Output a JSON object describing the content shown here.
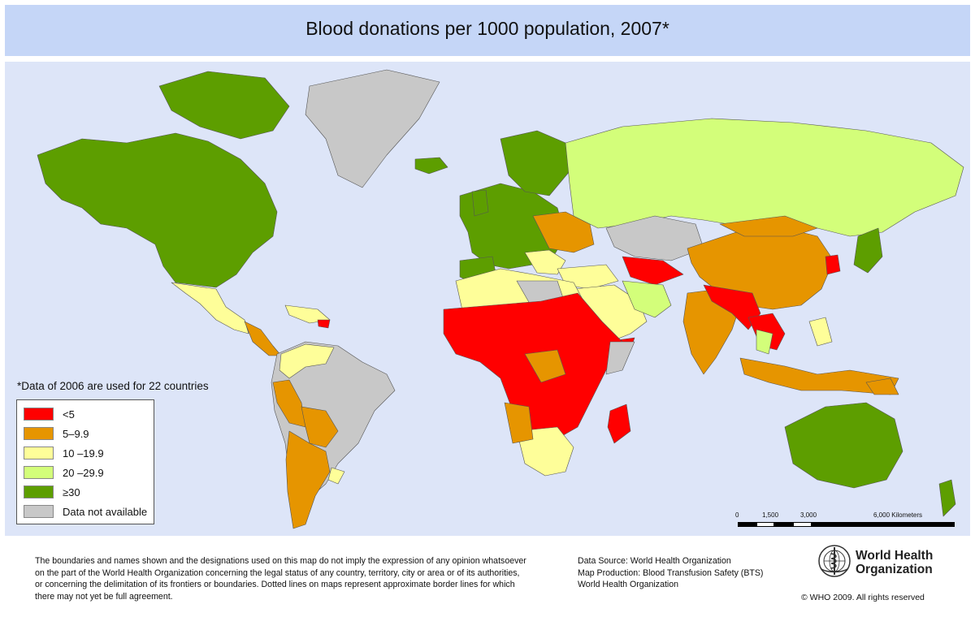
{
  "title": "Blood donations per 1000 population, 2007*",
  "note": "*Data of 2006 are used for 22 countries",
  "legend": {
    "items": [
      {
        "label": "<5",
        "color": "#ff0000"
      },
      {
        "label": "5–9.9",
        "color": "#e69500"
      },
      {
        "label": "10 –19.9",
        "color": "#fefe99"
      },
      {
        "label": "20 –29.9",
        "color": "#d3fe7a"
      },
      {
        "label": "≥30",
        "color": "#5d9e00"
      },
      {
        "label": "Data not available",
        "color": "#c8c8c8"
      }
    ]
  },
  "scale": {
    "labels": [
      "0",
      "1,500",
      "3,000",
      "6,000 Kilometers"
    ]
  },
  "footer": {
    "disclaimer": [
      "The boundaries and names shown and the designations used on this map do not imply the expression of any opinion whatsoever",
      "on the part of the World Health Organization concerning the legal status of any country, territory, city or area or of its authorities,",
      "or concerning the delimitation of its frontiers or boundaries.  Dotted lines on maps represent approximate border lines for which",
      "there may not yet be full agreement."
    ],
    "source": [
      "Data Source: World Health Organization",
      "Map Production: Blood Transfusion Safety (BTS)",
      "World Health Organization"
    ],
    "org_name": [
      "World Health",
      "Organization"
    ],
    "copyright": "© WHO 2009. All rights reserved"
  },
  "colors": {
    "title_bar": "#c5d6f7",
    "ocean": "#dde5f8",
    "borders": "#555555"
  },
  "icons": {
    "logo": "who-emblem-icon"
  }
}
